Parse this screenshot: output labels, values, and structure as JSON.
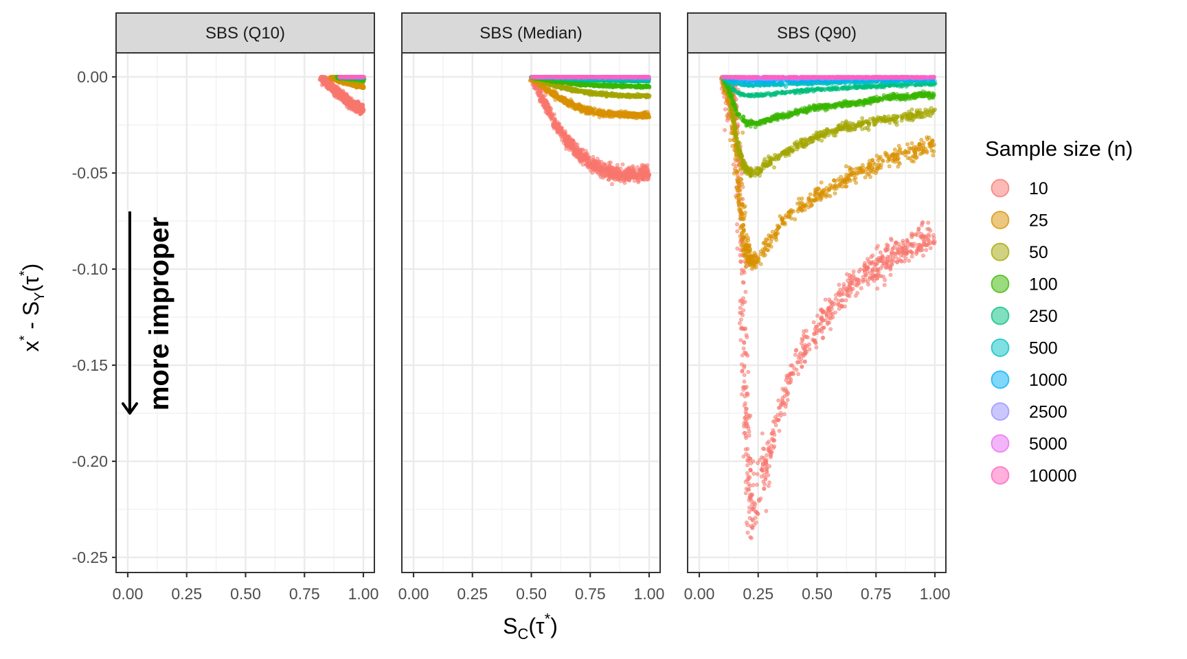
{
  "chart_data": {
    "type": "scatter",
    "title": "",
    "xlabel_main": "S",
    "xlabel_sub": "C",
    "xlabel_rest": "(τ",
    "xlabel_sup": "*",
    "xlabel_close": ")",
    "ylabel_x": "x",
    "ylabel_x_sup": "*",
    "ylabel_dash": " - S",
    "ylabel_sub": "Y",
    "ylabel_tau": "(τ",
    "ylabel_tau_sup": "*",
    "ylabel_close": ")",
    "xlim": [
      -0.05,
      1.05
    ],
    "ylim": [
      -0.255,
      0.012
    ],
    "xticks": [
      "0.00",
      "0.25",
      "0.50",
      "0.75",
      "1.00"
    ],
    "xtick_values": [
      0,
      0.25,
      0.5,
      0.75,
      1
    ],
    "yticks": [
      "0.00",
      "-0.05",
      "-0.10",
      "-0.15",
      "-0.20",
      "-0.25"
    ],
    "ytick_values": [
      0,
      -0.05,
      -0.1,
      -0.15,
      -0.2,
      -0.25
    ],
    "grid": true,
    "annotation": {
      "text": "more improper",
      "arrow_from": -0.07,
      "arrow_to": -0.175,
      "x": 0.0
    },
    "legend": {
      "title": "Sample size (n)",
      "position": "right",
      "entries": [
        "10",
        "25",
        "50",
        "100",
        "250",
        "500",
        "1000",
        "2500",
        "5000",
        "10000"
      ]
    },
    "colors": [
      "#F8766D",
      "#D89000",
      "#A3A500",
      "#39B600",
      "#00BF7D",
      "#00BFC4",
      "#00B0F6",
      "#9590FF",
      "#E76BF3",
      "#FF62BC"
    ],
    "panels": [
      {
        "strip": "SBS (Q10)",
        "series": [
          {
            "n": "10",
            "x": [
              0.82,
              0.87,
              0.92,
              0.96,
              1.0
            ],
            "y": [
              0,
              -0.006,
              -0.011,
              -0.015,
              -0.017
            ],
            "noise": 0.0012
          },
          {
            "n": "25",
            "x": [
              0.86,
              0.93,
              1.0
            ],
            "y": [
              0,
              -0.0028,
              -0.0052
            ],
            "noise": 0.0005
          },
          {
            "n": "50",
            "x": [
              0.88,
              1.0
            ],
            "y": [
              0,
              -0.0025
            ],
            "noise": 0.0003
          },
          {
            "n": "100",
            "x": [
              0.89,
              1.0
            ],
            "y": [
              0,
              -0.0012
            ],
            "noise": 0.0003
          },
          {
            "n": "250",
            "x": [
              0.9,
              1.0
            ],
            "y": [
              0,
              -0.0006
            ],
            "noise": 0.0002
          },
          {
            "n": "500",
            "x": [
              0.9,
              1.0
            ],
            "y": [
              0,
              -0.0003
            ],
            "noise": 0.0002
          },
          {
            "n": "1000",
            "x": [
              0.9,
              1.0
            ],
            "y": [
              0,
              -0.0002
            ],
            "noise": 0.0002
          },
          {
            "n": "2500",
            "x": [
              0.9,
              1.0
            ],
            "y": [
              0,
              -0.0001
            ],
            "noise": 0.0001
          },
          {
            "n": "5000",
            "x": [
              0.9,
              1.0
            ],
            "y": [
              0,
              0
            ],
            "noise": 0.0001
          },
          {
            "n": "10000",
            "x": [
              0.9,
              1.0
            ],
            "y": [
              0,
              0
            ],
            "noise": 0.0001
          }
        ]
      },
      {
        "strip": "SBS (Median)",
        "series": [
          {
            "n": "10",
            "x": [
              0.5,
              0.55,
              0.6,
              0.65,
              0.7,
              0.75,
              0.8,
              0.85,
              0.9,
              0.95,
              1.0
            ],
            "y": [
              0,
              -0.012,
              -0.024,
              -0.033,
              -0.04,
              -0.045,
              -0.048,
              -0.05,
              -0.051,
              -0.051,
              -0.05
            ],
            "noise": 0.0018
          },
          {
            "n": "25",
            "x": [
              0.5,
              0.55,
              0.6,
              0.65,
              0.7,
              0.75,
              0.8,
              0.9,
              1.0
            ],
            "y": [
              0,
              -0.005,
              -0.0095,
              -0.013,
              -0.016,
              -0.018,
              -0.019,
              -0.0198,
              -0.0198
            ],
            "noise": 0.0008
          },
          {
            "n": "50",
            "x": [
              0.5,
              0.6,
              0.7,
              0.8,
              0.9,
              1.0
            ],
            "y": [
              0,
              -0.0045,
              -0.0075,
              -0.009,
              -0.0098,
              -0.01
            ],
            "noise": 0.0004
          },
          {
            "n": "100",
            "x": [
              0.5,
              0.6,
              0.7,
              0.8,
              1.0
            ],
            "y": [
              0,
              -0.0022,
              -0.0038,
              -0.0045,
              -0.005
            ],
            "noise": 0.0003
          },
          {
            "n": "250",
            "x": [
              0.5,
              0.7,
              1.0
            ],
            "y": [
              0,
              -0.0016,
              -0.0022
            ],
            "noise": 0.0002
          },
          {
            "n": "500",
            "x": [
              0.5,
              0.7,
              1.0
            ],
            "y": [
              0,
              -0.0008,
              -0.0012
            ],
            "noise": 0.0002
          },
          {
            "n": "1000",
            "x": [
              0.5,
              1.0
            ],
            "y": [
              0,
              -0.0006
            ],
            "noise": 0.0002
          },
          {
            "n": "2500",
            "x": [
              0.5,
              1.0
            ],
            "y": [
              0,
              -0.0002
            ],
            "noise": 0.0002
          },
          {
            "n": "5000",
            "x": [
              0.5,
              1.0
            ],
            "y": [
              0,
              -0.0001
            ],
            "noise": 0.0001
          },
          {
            "n": "10000",
            "x": [
              0.5,
              1.0
            ],
            "y": [
              0,
              0
            ],
            "noise": 0.0001
          }
        ]
      },
      {
        "strip": "SBS (Q90)",
        "series": [
          {
            "n": "10",
            "x": [
              0.1,
              0.15,
              0.17,
              0.19,
              0.22,
              0.25,
              0.3,
              0.35,
              0.4,
              0.5,
              0.6,
              0.7,
              0.8,
              0.9,
              1.0
            ],
            "y": [
              0,
              -0.01,
              -0.06,
              -0.15,
              -0.23,
              -0.215,
              -0.195,
              -0.17,
              -0.15,
              -0.13,
              -0.115,
              -0.102,
              -0.095,
              -0.088,
              -0.082
            ],
            "noise": 0.004
          },
          {
            "n": "25",
            "x": [
              0.1,
              0.13,
              0.16,
              0.19,
              0.22,
              0.26,
              0.3,
              0.35,
              0.4,
              0.5,
              0.6,
              0.7,
              0.8,
              0.9,
              1.0
            ],
            "y": [
              0,
              -0.01,
              -0.045,
              -0.085,
              -0.098,
              -0.093,
              -0.085,
              -0.077,
              -0.071,
              -0.062,
              -0.055,
              -0.048,
              -0.043,
              -0.039,
              -0.035
            ],
            "noise": 0.0022
          },
          {
            "n": "50",
            "x": [
              0.1,
              0.13,
              0.16,
              0.19,
              0.22,
              0.26,
              0.3,
              0.4,
              0.5,
              0.6,
              0.7,
              0.8,
              0.9,
              1.0
            ],
            "y": [
              0,
              -0.01,
              -0.034,
              -0.047,
              -0.05,
              -0.048,
              -0.044,
              -0.037,
              -0.031,
              -0.027,
              -0.024,
              -0.022,
              -0.02,
              -0.018
            ],
            "noise": 0.0012
          },
          {
            "n": "100",
            "x": [
              0.1,
              0.13,
              0.16,
              0.2,
              0.24,
              0.3,
              0.4,
              0.5,
              0.6,
              0.7,
              0.8,
              0.9,
              1.0
            ],
            "y": [
              0,
              -0.008,
              -0.019,
              -0.024,
              -0.024,
              -0.022,
              -0.019,
              -0.016,
              -0.0145,
              -0.013,
              -0.011,
              -0.01,
              -0.009
            ],
            "noise": 0.0007
          },
          {
            "n": "250",
            "x": [
              0.1,
              0.13,
              0.17,
              0.22,
              0.3,
              0.4,
              0.5,
              0.6,
              0.7,
              0.8,
              0.9,
              1.0
            ],
            "y": [
              0,
              -0.005,
              -0.009,
              -0.0098,
              -0.009,
              -0.0077,
              -0.0066,
              -0.0058,
              -0.005,
              -0.0045,
              -0.004,
              -0.0035
            ],
            "noise": 0.0004
          },
          {
            "n": "500",
            "x": [
              0.1,
              0.14,
              0.2,
              0.3,
              0.5,
              0.7,
              1.0
            ],
            "y": [
              0,
              -0.0032,
              -0.0042,
              -0.004,
              -0.0032,
              -0.0026,
              -0.002
            ],
            "noise": 0.0003
          },
          {
            "n": "1000",
            "x": [
              0.1,
              0.15,
              0.25,
              0.5,
              1.0
            ],
            "y": [
              0,
              -0.0018,
              -0.002,
              -0.0015,
              -0.001
            ],
            "noise": 0.0003
          },
          {
            "n": "2500",
            "x": [
              0.1,
              0.2,
              0.5,
              1.0
            ],
            "y": [
              0,
              -0.0008,
              -0.0006,
              -0.0004
            ],
            "noise": 0.0002
          },
          {
            "n": "5000",
            "x": [
              0.1,
              0.2,
              1.0
            ],
            "y": [
              0,
              -0.0004,
              -0.0002
            ],
            "noise": 0.0002
          },
          {
            "n": "10000",
            "x": [
              0.1,
              1.0
            ],
            "y": [
              0,
              -0.0001
            ],
            "noise": 0.0001
          }
        ]
      }
    ]
  }
}
